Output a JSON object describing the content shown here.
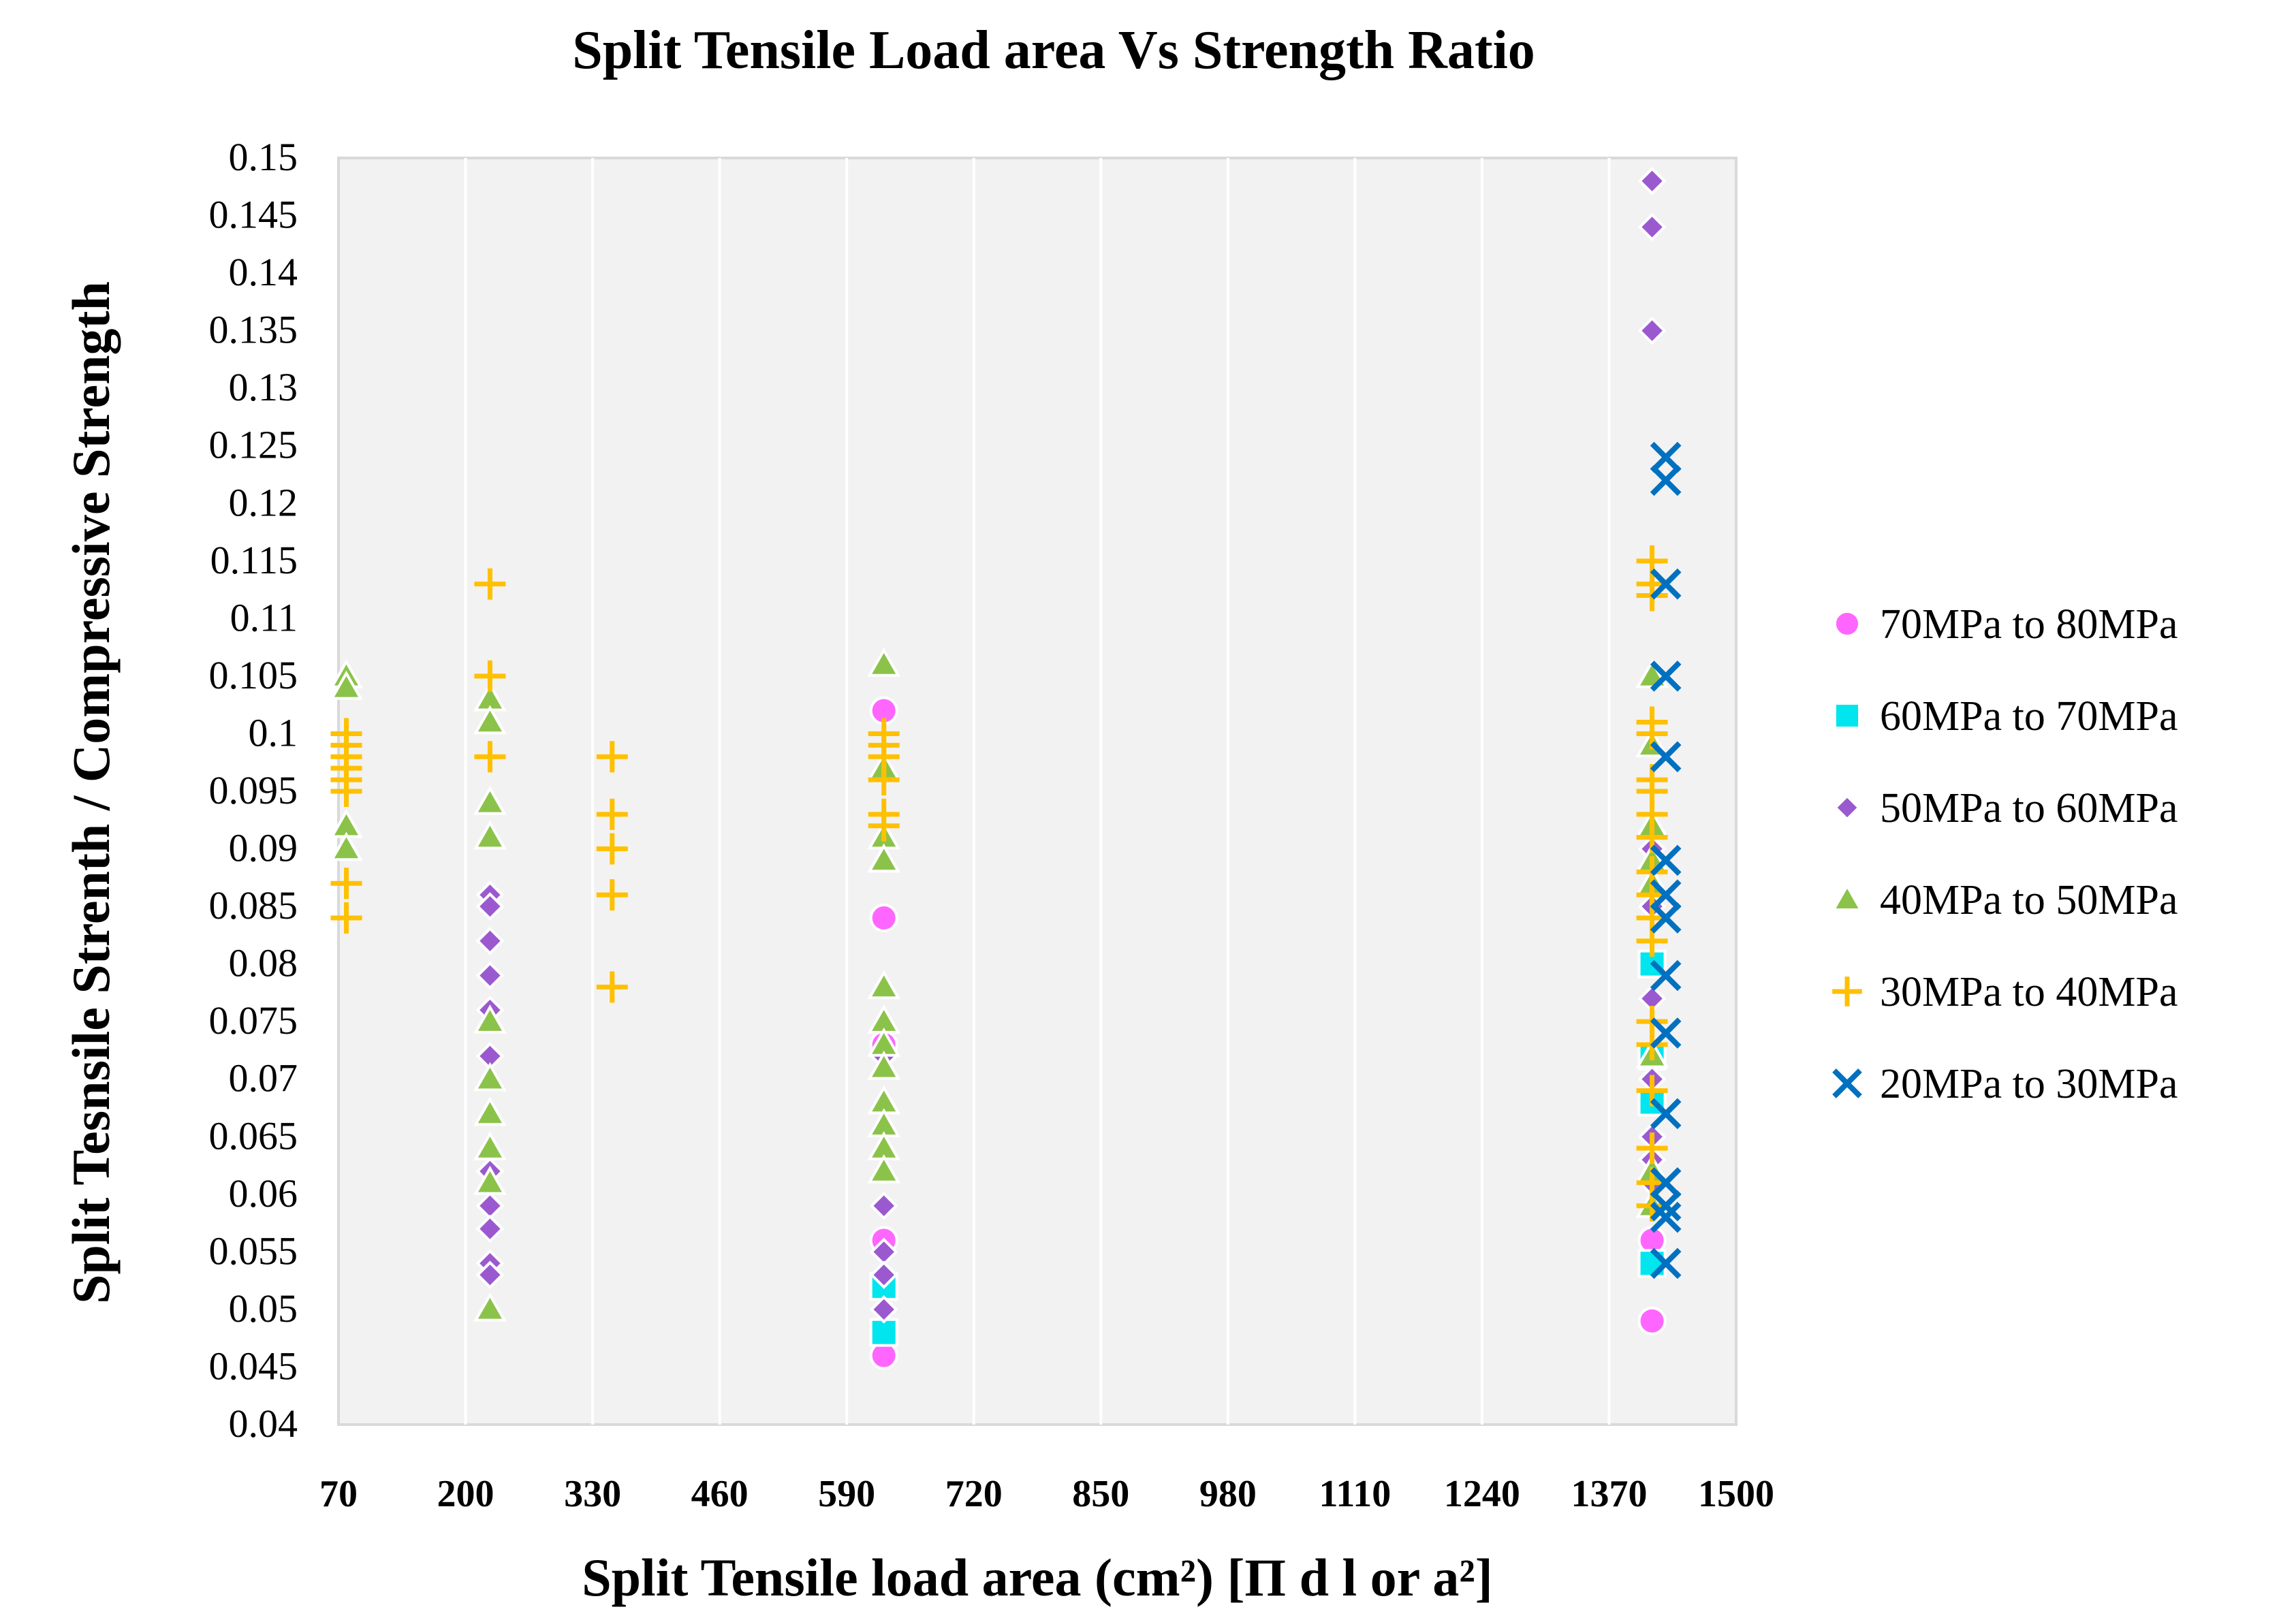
{
  "chart_data": {
    "type": "scatter",
    "title": "Split Tensile Load area Vs Strength Ratio",
    "xlabel": "Split Tensile load area (cm²) [Π d l or a²]",
    "ylabel": "Split Tesnsile Strenth / Compressive Strength",
    "xlim": [
      70,
      1500
    ],
    "ylim": [
      0.04,
      0.15
    ],
    "xticks": [
      70,
      200,
      330,
      460,
      590,
      720,
      850,
      980,
      1110,
      1240,
      1370,
      1500
    ],
    "yticks": [
      "0.04",
      "0.045",
      "0.05",
      "0.055",
      "0.06",
      "0.065",
      "0.07",
      "0.075",
      "0.08",
      "0.085",
      "0.09",
      "0.095",
      "0.1",
      "0.105",
      "0.11",
      "0.115",
      "0.12",
      "0.125",
      "0.13",
      "0.135",
      "0.14",
      "0.145",
      "0.15"
    ],
    "grid": true,
    "legend_position": "right",
    "series": [
      {
        "name": "70MPa to 80MPa",
        "marker": "circle",
        "color": "#FF66FF",
        "points": [
          [
            628,
            0.102
          ],
          [
            628,
            0.084
          ],
          [
            628,
            0.073
          ],
          [
            628,
            0.056
          ],
          [
            628,
            0.046
          ],
          [
            1414,
            0.056
          ],
          [
            1414,
            0.049
          ]
        ]
      },
      {
        "name": "60MPa to 70MPa",
        "marker": "square",
        "color": "#00E5EE",
        "points": [
          [
            628,
            0.052
          ],
          [
            628,
            0.048
          ],
          [
            1414,
            0.08
          ],
          [
            1414,
            0.072
          ],
          [
            1414,
            0.068
          ],
          [
            1414,
            0.054
          ]
        ]
      },
      {
        "name": "50MPa to 60MPa",
        "marker": "diamond",
        "color": "#9B59D0",
        "points": [
          [
            225,
            0.086
          ],
          [
            225,
            0.085
          ],
          [
            225,
            0.082
          ],
          [
            225,
            0.079
          ],
          [
            225,
            0.076
          ],
          [
            225,
            0.072
          ],
          [
            225,
            0.062
          ],
          [
            225,
            0.059
          ],
          [
            225,
            0.057
          ],
          [
            225,
            0.054
          ],
          [
            225,
            0.053
          ],
          [
            628,
            0.072
          ],
          [
            628,
            0.059
          ],
          [
            628,
            0.055
          ],
          [
            628,
            0.053
          ],
          [
            628,
            0.05
          ],
          [
            1414,
            0.148
          ],
          [
            1414,
            0.144
          ],
          [
            1414,
            0.135
          ],
          [
            1414,
            0.09
          ],
          [
            1414,
            0.085
          ],
          [
            1414,
            0.077
          ],
          [
            1414,
            0.07
          ],
          [
            1414,
            0.065
          ],
          [
            1414,
            0.063
          ],
          [
            1414,
            0.061
          ]
        ]
      },
      {
        "name": "40MPa to 50MPa",
        "marker": "triangle",
        "color": "#8BC34A",
        "points": [
          [
            78,
            0.105
          ],
          [
            78,
            0.104
          ],
          [
            78,
            0.092
          ],
          [
            78,
            0.09
          ],
          [
            225,
            0.103
          ],
          [
            225,
            0.101
          ],
          [
            225,
            0.094
          ],
          [
            225,
            0.091
          ],
          [
            225,
            0.075
          ],
          [
            225,
            0.07
          ],
          [
            225,
            0.067
          ],
          [
            225,
            0.064
          ],
          [
            225,
            0.061
          ],
          [
            225,
            0.05
          ],
          [
            628,
            0.106
          ],
          [
            628,
            0.097
          ],
          [
            628,
            0.091
          ],
          [
            628,
            0.089
          ],
          [
            628,
            0.078
          ],
          [
            628,
            0.075
          ],
          [
            628,
            0.073
          ],
          [
            628,
            0.071
          ],
          [
            628,
            0.068
          ],
          [
            628,
            0.066
          ],
          [
            628,
            0.064
          ],
          [
            628,
            0.062
          ],
          [
            1414,
            0.105
          ],
          [
            1414,
            0.099
          ],
          [
            1414,
            0.092
          ],
          [
            1414,
            0.089
          ],
          [
            1414,
            0.087
          ],
          [
            1414,
            0.072
          ],
          [
            1414,
            0.062
          ],
          [
            1414,
            0.059
          ]
        ]
      },
      {
        "name": "30MPa to 40MPa",
        "marker": "plus",
        "color": "#FFC000",
        "points": [
          [
            78,
            0.1
          ],
          [
            78,
            0.099
          ],
          [
            78,
            0.098
          ],
          [
            78,
            0.097
          ],
          [
            78,
            0.096
          ],
          [
            78,
            0.095
          ],
          [
            78,
            0.087
          ],
          [
            78,
            0.084
          ],
          [
            225,
            0.113
          ],
          [
            225,
            0.105
          ],
          [
            225,
            0.098
          ],
          [
            350,
            0.098
          ],
          [
            350,
            0.093
          ],
          [
            350,
            0.09
          ],
          [
            350,
            0.086
          ],
          [
            350,
            0.078
          ],
          [
            628,
            0.1
          ],
          [
            628,
            0.099
          ],
          [
            628,
            0.098
          ],
          [
            628,
            0.096
          ],
          [
            628,
            0.093
          ],
          [
            628,
            0.092
          ],
          [
            1414,
            0.115
          ],
          [
            1414,
            0.113
          ],
          [
            1414,
            0.112
          ],
          [
            1414,
            0.101
          ],
          [
            1414,
            0.1
          ],
          [
            1414,
            0.096
          ],
          [
            1414,
            0.095
          ],
          [
            1414,
            0.093
          ],
          [
            1414,
            0.091
          ],
          [
            1414,
            0.088
          ],
          [
            1414,
            0.086
          ],
          [
            1414,
            0.084
          ],
          [
            1414,
            0.082
          ],
          [
            1414,
            0.075
          ],
          [
            1414,
            0.073
          ],
          [
            1414,
            0.069
          ],
          [
            1414,
            0.064
          ],
          [
            1414,
            0.061
          ],
          [
            1414,
            0.059
          ]
        ]
      },
      {
        "name": "20MPa to 30MPa",
        "marker": "x",
        "color": "#0070C0",
        "points": [
          [
            1428,
            0.124
          ],
          [
            1428,
            0.122
          ],
          [
            1428,
            0.113
          ],
          [
            1428,
            0.105
          ],
          [
            1428,
            0.098
          ],
          [
            1428,
            0.089
          ],
          [
            1428,
            0.086
          ],
          [
            1428,
            0.084
          ],
          [
            1428,
            0.079
          ],
          [
            1428,
            0.074
          ],
          [
            1428,
            0.067
          ],
          [
            1428,
            0.061
          ],
          [
            1428,
            0.059
          ],
          [
            1428,
            0.058
          ],
          [
            1428,
            0.054
          ]
        ]
      }
    ]
  }
}
